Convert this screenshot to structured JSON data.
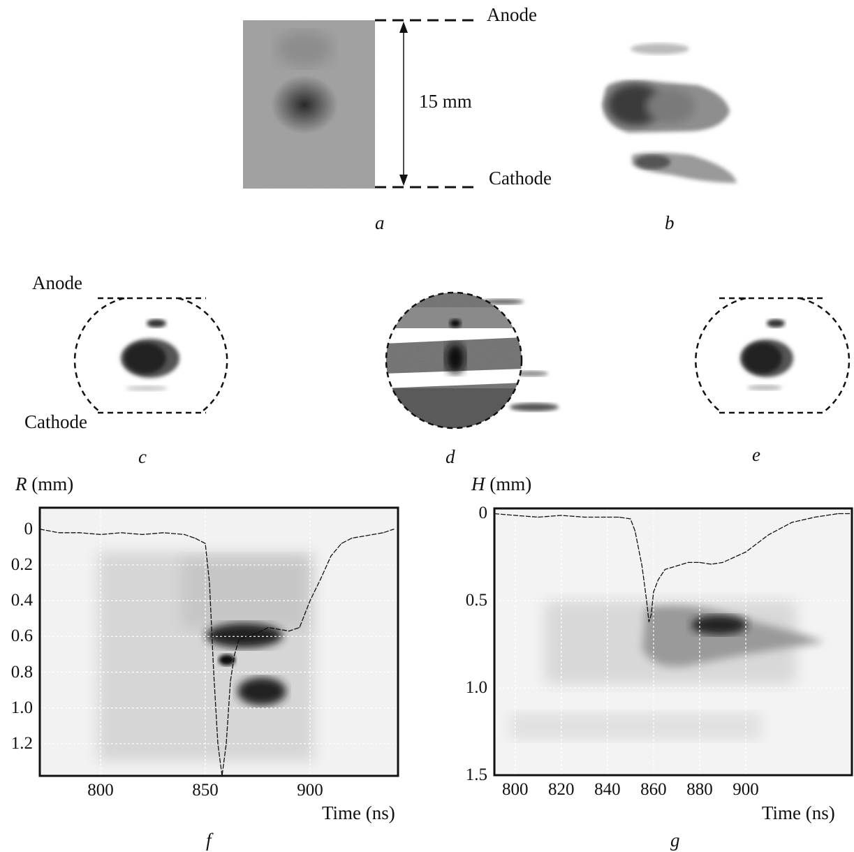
{
  "panel_a": {
    "anode_label": "Anode",
    "cathode_label": "Cathode",
    "gap_label": "15 mm",
    "caption": "a"
  },
  "panel_b": {
    "caption": "b"
  },
  "panel_c": {
    "anode_label": "Anode",
    "cathode_label": "Cathode",
    "caption": "c"
  },
  "panel_d": {
    "caption": "d"
  },
  "panel_e": {
    "caption": "e"
  },
  "chart_data": [
    {
      "type": "line",
      "panel": "f",
      "ylabel_symbol": "R",
      "ylabel_unit": "(mm)",
      "xlabel": "Time (ns)",
      "xticks": [
        "800",
        "850",
        "900"
      ],
      "yticks": [
        "0",
        "0.2",
        "0.4",
        "0.6",
        "0.8",
        "1.0",
        "1.2"
      ],
      "xlim": [
        771,
        942
      ],
      "ylim": [
        1.38,
        -0.12
      ],
      "grid": true,
      "series": [
        {
          "x": [
            771,
            780,
            790,
            800,
            810,
            820,
            830,
            840,
            845,
            850,
            852,
            854,
            856,
            858,
            860,
            862,
            864,
            866,
            870,
            875,
            880,
            885,
            890,
            895,
            900,
            905,
            910,
            915,
            920,
            925,
            930,
            935,
            940
          ],
          "y": [
            0.0,
            0.02,
            0.02,
            0.03,
            0.02,
            0.03,
            0.02,
            0.03,
            0.05,
            0.08,
            0.3,
            0.8,
            1.2,
            1.38,
            1.2,
            0.85,
            0.7,
            0.62,
            0.6,
            0.58,
            0.55,
            0.56,
            0.57,
            0.55,
            0.4,
            0.28,
            0.15,
            0.08,
            0.05,
            0.04,
            0.03,
            0.02,
            0.0
          ]
        }
      ]
    },
    {
      "type": "line",
      "panel": "g",
      "ylabel_symbol": "H",
      "ylabel_unit": "(mm)",
      "xlabel": "Time (ns)",
      "xticks": [
        "800",
        "820",
        "840",
        "860",
        "880",
        "900"
      ],
      "yticks": [
        "0",
        "0.5",
        "1.0",
        "1.5"
      ],
      "xlim": [
        791,
        946
      ],
      "ylim": [
        1.5,
        -0.03
      ],
      "grid": true,
      "series": [
        {
          "x": [
            791,
            800,
            810,
            820,
            830,
            840,
            845,
            850,
            852,
            855,
            857,
            858,
            859,
            860,
            862,
            865,
            870,
            875,
            880,
            885,
            890,
            900,
            910,
            920,
            930,
            940,
            946
          ],
          "y": [
            0.0,
            0.01,
            0.02,
            0.01,
            0.02,
            0.02,
            0.02,
            0.03,
            0.1,
            0.3,
            0.5,
            0.62,
            0.58,
            0.45,
            0.38,
            0.32,
            0.3,
            0.28,
            0.28,
            0.29,
            0.28,
            0.22,
            0.12,
            0.05,
            0.02,
            0.0,
            0.0
          ]
        }
      ]
    }
  ],
  "captions": {
    "f": "f",
    "g": "g"
  }
}
